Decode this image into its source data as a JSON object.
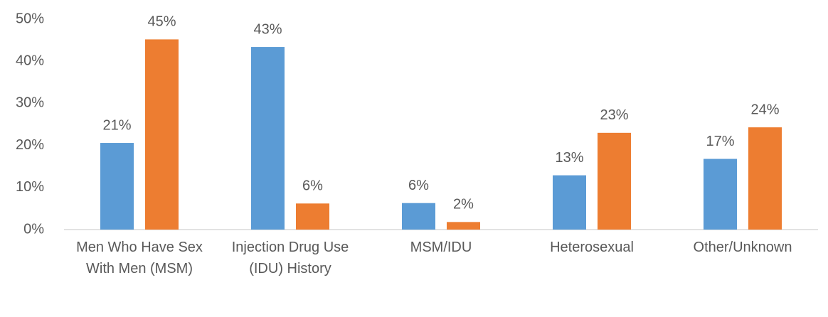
{
  "chart_data": {
    "type": "bar",
    "categories": [
      "Men Who Have Sex With Men (MSM)",
      "Injection Drug Use (IDU) History",
      "MSM/IDU",
      "Heterosexual",
      "Other/Unknown"
    ],
    "series": [
      {
        "color": "#5b9bd5",
        "values": [
          20.6,
          43.4,
          6.3,
          12.9,
          16.8
        ],
        "value_labels": [
          "21%",
          "43%",
          "6%",
          "13%",
          "17%"
        ]
      },
      {
        "color": "#ed7d31",
        "values": [
          45.2,
          6.2,
          1.8,
          23.0,
          24.3
        ],
        "value_labels": [
          "45%",
          "6%",
          "2%",
          "23%",
          "24%"
        ]
      }
    ],
    "ylim": [
      0,
      50
    ],
    "yticks": [
      {
        "value": 0,
        "label": "0%"
      },
      {
        "value": 10,
        "label": "10%"
      },
      {
        "value": 20,
        "label": "20%"
      },
      {
        "value": 30,
        "label": "30%"
      },
      {
        "value": 40,
        "label": "40%"
      },
      {
        "value": 50,
        "label": "50%"
      }
    ],
    "grid": false
  }
}
